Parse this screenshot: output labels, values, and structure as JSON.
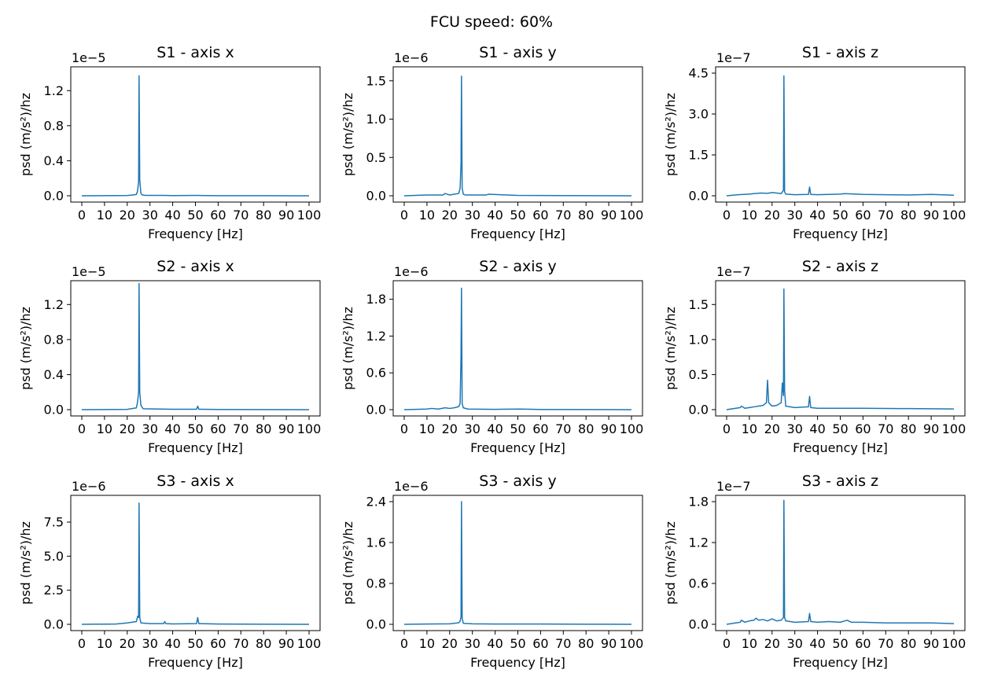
{
  "figure": {
    "title": "FCU speed: 60%"
  },
  "chart_data": [
    {
      "type": "line",
      "title": "S1 - axis x",
      "xlabel": "Frequency [Hz]",
      "ylabel": "psd (m/s²)/hz",
      "xlim": [
        0,
        100
      ],
      "ylim": [
        0,
        1.4
      ],
      "y_exponent": "1e−5",
      "xticks": [
        "0",
        "10",
        "20",
        "30",
        "40",
        "50",
        "60",
        "70",
        "80",
        "90",
        "100"
      ],
      "yticks": [
        "0.0",
        "0.4",
        "0.8",
        "1.2"
      ],
      "grid": false,
      "color": "#1f77b4",
      "series": [
        {
          "x": [
            0,
            20,
            22,
            24,
            24.5,
            25,
            25.2,
            25.5,
            26,
            26.5,
            28,
            36,
            40,
            51,
            60,
            80,
            100
          ],
          "y": [
            0.0,
            0.003,
            0.008,
            0.015,
            0.05,
            0.16,
            1.37,
            0.18,
            0.03,
            0.01,
            0.004,
            0.005,
            0.002,
            0.004,
            0.001,
            0.001,
            0.0
          ]
        }
      ]
    },
    {
      "type": "line",
      "title": "S1 - axis y",
      "xlabel": "Frequency [Hz]",
      "ylabel": "psd (m/s²)/hz",
      "xlim": [
        0,
        100
      ],
      "ylim": [
        0,
        1.6
      ],
      "y_exponent": "1e−6",
      "xticks": [
        "0",
        "10",
        "20",
        "30",
        "40",
        "50",
        "60",
        "70",
        "80",
        "90",
        "100"
      ],
      "yticks": [
        "0.0",
        "0.5",
        "1.0",
        "1.5"
      ],
      "grid": false,
      "color": "#1f77b4",
      "series": [
        {
          "x": [
            0,
            10,
            17,
            18,
            20,
            22,
            24,
            24.6,
            25,
            25.2,
            25.5,
            26,
            27,
            36,
            37,
            50,
            70,
            100
          ],
          "y": [
            0.0,
            0.01,
            0.01,
            0.03,
            0.01,
            0.02,
            0.03,
            0.1,
            0.43,
            1.56,
            0.1,
            0.02,
            0.01,
            0.01,
            0.02,
            0.005,
            0.003,
            0.0
          ]
        }
      ]
    },
    {
      "type": "line",
      "title": "S1 - axis z",
      "xlabel": "Frequency [Hz]",
      "ylabel": "psd (m/s²)/hz",
      "xlim": [
        0,
        100
      ],
      "ylim": [
        0,
        4.5
      ],
      "y_exponent": "1e−7",
      "xticks": [
        "0",
        "10",
        "20",
        "30",
        "40",
        "50",
        "60",
        "70",
        "80",
        "90",
        "100"
      ],
      "yticks": [
        "0.0",
        "1.5",
        "3.0",
        "4.5"
      ],
      "grid": false,
      "color": "#1f77b4",
      "series": [
        {
          "x": [
            0,
            5,
            10,
            12,
            15,
            18,
            20,
            22,
            24,
            25,
            25.2,
            25.5,
            26,
            30,
            36,
            36.5,
            37,
            40,
            50,
            52,
            60,
            70,
            80,
            90,
            100
          ],
          "y": [
            0.0,
            0.04,
            0.06,
            0.08,
            0.1,
            0.09,
            0.12,
            0.1,
            0.08,
            0.2,
            4.4,
            0.15,
            0.06,
            0.04,
            0.05,
            0.32,
            0.05,
            0.04,
            0.06,
            0.08,
            0.05,
            0.04,
            0.03,
            0.05,
            0.02
          ]
        }
      ]
    },
    {
      "type": "line",
      "title": "S2 - axis x",
      "xlabel": "Frequency [Hz]",
      "ylabel": "psd (m/s²)/hz",
      "xlim": [
        0,
        100
      ],
      "ylim": [
        0,
        1.4
      ],
      "y_exponent": "1e−5",
      "xticks": [
        "0",
        "10",
        "20",
        "30",
        "40",
        "50",
        "60",
        "70",
        "80",
        "90",
        "100"
      ],
      "yticks": [
        "0.0",
        "0.4",
        "0.8",
        "1.2"
      ],
      "grid": false,
      "color": "#1f77b4",
      "series": [
        {
          "x": [
            0,
            20,
            24,
            24.5,
            25,
            25.2,
            25.5,
            26,
            27,
            40,
            50.5,
            51,
            51.5,
            60,
            100
          ],
          "y": [
            0.0,
            0.003,
            0.02,
            0.08,
            0.2,
            1.44,
            0.2,
            0.05,
            0.01,
            0.004,
            0.005,
            0.04,
            0.005,
            0.002,
            0.0
          ]
        }
      ]
    },
    {
      "type": "line",
      "title": "S2 - axis y",
      "xlabel": "Frequency [Hz]",
      "ylabel": "psd (m/s²)/hz",
      "xlim": [
        0,
        100
      ],
      "ylim": [
        0,
        2.0
      ],
      "y_exponent": "1e−6",
      "xticks": [
        "0",
        "10",
        "20",
        "30",
        "40",
        "50",
        "60",
        "70",
        "80",
        "90",
        "100"
      ],
      "yticks": [
        "0.0",
        "0.6",
        "1.2",
        "1.8"
      ],
      "grid": false,
      "color": "#1f77b4",
      "series": [
        {
          "x": [
            0,
            10,
            12,
            15,
            18,
            20,
            22,
            24,
            24.6,
            25,
            25.2,
            25.5,
            26,
            28,
            40,
            51,
            60,
            100
          ],
          "y": [
            0.0,
            0.01,
            0.02,
            0.01,
            0.03,
            0.02,
            0.03,
            0.05,
            0.1,
            0.9,
            1.98,
            0.1,
            0.03,
            0.01,
            0.005,
            0.01,
            0.003,
            0.0
          ]
        }
      ]
    },
    {
      "type": "line",
      "title": "S2 - axis z",
      "xlabel": "Frequency [Hz]",
      "ylabel": "psd (m/s²)/hz",
      "xlim": [
        0,
        100
      ],
      "ylim": [
        0,
        1.75
      ],
      "y_exponent": "1e−7",
      "xticks": [
        "0",
        "10",
        "20",
        "30",
        "40",
        "50",
        "60",
        "70",
        "80",
        "90",
        "100"
      ],
      "yticks": [
        "0.0",
        "0.5",
        "1.0",
        "1.5"
      ],
      "grid": false,
      "color": "#1f77b4",
      "series": [
        {
          "x": [
            0,
            4,
            6,
            6.5,
            8,
            10,
            12,
            14,
            16,
            17.5,
            18,
            18.5,
            20,
            22,
            24,
            24.5,
            25,
            25.2,
            25.5,
            26,
            30,
            36,
            36.5,
            37,
            40,
            50,
            60,
            80,
            100
          ],
          "y": [
            0.0,
            0.02,
            0.03,
            0.05,
            0.02,
            0.03,
            0.04,
            0.05,
            0.06,
            0.1,
            0.42,
            0.1,
            0.05,
            0.06,
            0.1,
            0.38,
            0.2,
            1.72,
            0.28,
            0.05,
            0.03,
            0.04,
            0.19,
            0.03,
            0.02,
            0.02,
            0.02,
            0.015,
            0.01
          ]
        }
      ]
    },
    {
      "type": "line",
      "title": "S3 - axis x",
      "xlabel": "Frequency [Hz]",
      "ylabel": "psd (m/s²)/hz",
      "xlim": [
        0,
        100
      ],
      "ylim": [
        0,
        9.0
      ],
      "y_exponent": "1e−6",
      "xticks": [
        "0",
        "10",
        "20",
        "30",
        "40",
        "50",
        "60",
        "70",
        "80",
        "90",
        "100"
      ],
      "yticks": [
        "0.0",
        "2.5",
        "5.0",
        "7.5"
      ],
      "grid": false,
      "color": "#1f77b4",
      "series": [
        {
          "x": [
            0,
            15,
            20,
            22,
            24,
            24.6,
            25,
            25.2,
            25.5,
            26,
            30,
            36,
            36.5,
            37,
            40,
            50.5,
            51,
            51.5,
            60,
            80,
            100
          ],
          "y": [
            0.0,
            0.02,
            0.1,
            0.15,
            0.2,
            0.6,
            0.5,
            8.9,
            0.5,
            0.1,
            0.05,
            0.05,
            0.2,
            0.05,
            0.03,
            0.05,
            0.5,
            0.05,
            0.02,
            0.01,
            0.0
          ]
        }
      ]
    },
    {
      "type": "line",
      "title": "S3 - axis y",
      "xlabel": "Frequency [Hz]",
      "ylabel": "psd (m/s²)/hz",
      "xlim": [
        0,
        100
      ],
      "ylim": [
        0,
        2.4
      ],
      "y_exponent": "1e−6",
      "xticks": [
        "0",
        "10",
        "20",
        "30",
        "40",
        "50",
        "60",
        "70",
        "80",
        "90",
        "100"
      ],
      "yticks": [
        "0.0",
        "0.8",
        "1.6",
        "2.4"
      ],
      "grid": false,
      "color": "#1f77b4",
      "series": [
        {
          "x": [
            0,
            10,
            20,
            22,
            24,
            24.6,
            25,
            25.2,
            25.5,
            26,
            30,
            40,
            60,
            80,
            100
          ],
          "y": [
            0.0,
            0.005,
            0.01,
            0.02,
            0.03,
            0.06,
            0.15,
            2.4,
            0.12,
            0.02,
            0.01,
            0.005,
            0.005,
            0.002,
            0.0
          ]
        }
      ]
    },
    {
      "type": "line",
      "title": "S3 - axis z",
      "xlabel": "Frequency [Hz]",
      "ylabel": "psd (m/s²)/hz",
      "xlim": [
        0,
        100
      ],
      "ylim": [
        0,
        1.8
      ],
      "y_exponent": "1e−7",
      "xticks": [
        "0",
        "10",
        "20",
        "30",
        "40",
        "50",
        "60",
        "70",
        "80",
        "90",
        "100"
      ],
      "yticks": [
        "0.0",
        "0.6",
        "1.2",
        "1.8"
      ],
      "grid": false,
      "color": "#1f77b4",
      "series": [
        {
          "x": [
            0,
            4,
            6,
            6.5,
            8,
            10,
            12,
            13,
            14,
            16,
            18,
            20,
            22,
            24,
            25,
            25.2,
            25.5,
            26,
            30,
            36,
            36.5,
            37,
            40,
            45,
            50,
            53,
            55,
            60,
            70,
            80,
            90,
            100
          ],
          "y": [
            0.0,
            0.02,
            0.03,
            0.06,
            0.03,
            0.05,
            0.06,
            0.09,
            0.06,
            0.07,
            0.05,
            0.08,
            0.05,
            0.06,
            0.1,
            1.82,
            0.1,
            0.05,
            0.03,
            0.04,
            0.16,
            0.04,
            0.03,
            0.04,
            0.03,
            0.06,
            0.03,
            0.03,
            0.02,
            0.02,
            0.02,
            0.01
          ]
        }
      ]
    }
  ]
}
